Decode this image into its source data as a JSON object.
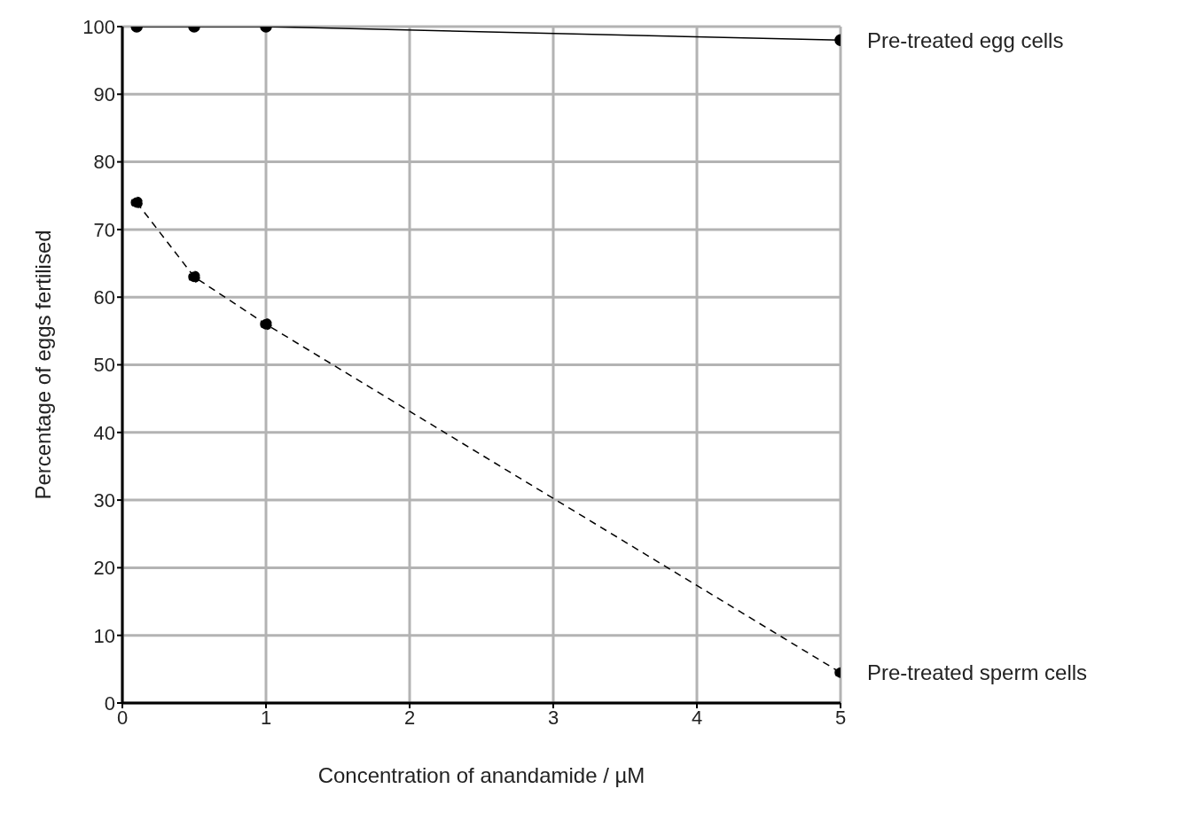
{
  "chart_data": {
    "type": "line",
    "xlabel": "Concentration of anandamide / µM",
    "ylabel": "Percentage of eggs fertilised",
    "x": [
      0.1,
      0.5,
      1,
      5
    ],
    "series": [
      {
        "name": "Pre-treated egg cells",
        "color": "#000000",
        "values": [
          100,
          100,
          100,
          98
        ],
        "line_style": "solid"
      },
      {
        "name": "Pre-treated sperm cells",
        "color": "#000000",
        "values": [
          74,
          63,
          56,
          4.5
        ],
        "line_style": "dashed"
      }
    ],
    "xlim": [
      0,
      5
    ],
    "xticks": [
      0,
      1,
      2,
      3,
      4,
      5
    ],
    "ylim": [
      0,
      100
    ],
    "yticks": [
      0,
      10,
      20,
      30,
      40,
      50,
      60,
      70,
      80,
      90,
      100
    ],
    "grid": true,
    "marker": "circle"
  }
}
